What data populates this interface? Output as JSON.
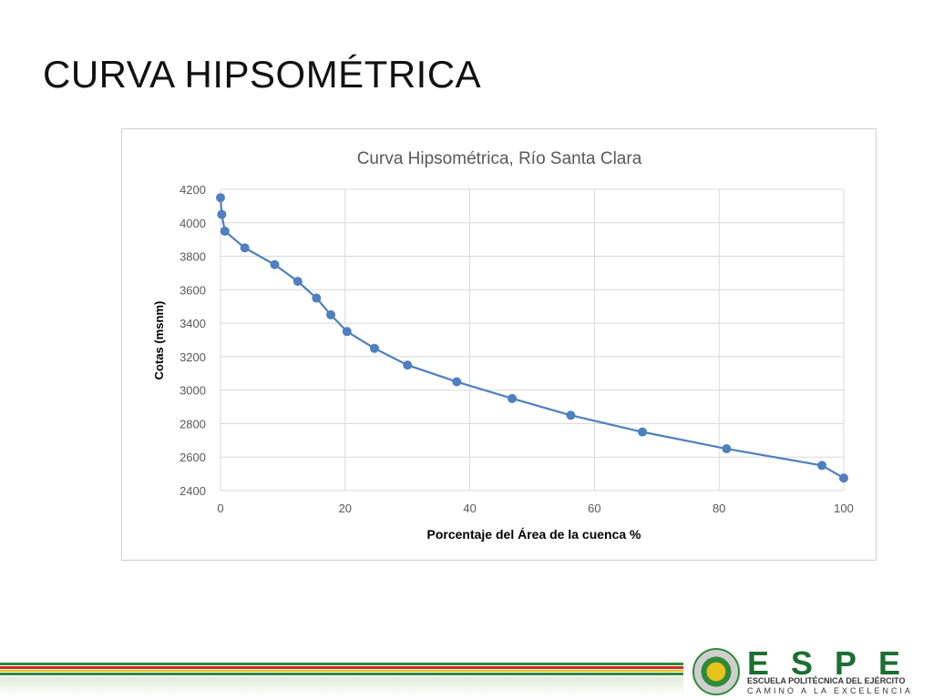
{
  "slide": {
    "title": "CURVA HIPSOMÉTRICA"
  },
  "footer": {
    "brand": "ESPE",
    "subtitle": "ESCUELA POLITÉCNICA DEL EJÉRCITO",
    "motto": "CAMINO A LA EXCELENCIA"
  },
  "colors": {
    "series": "#4e7fbf",
    "grid": "#d9d9d9",
    "axis_text": "#595959",
    "title_text": "#595959"
  },
  "chart_data": {
    "type": "line",
    "title": "Curva Hipsométrica, Río Santa Clara",
    "xlabel": "Porcentaje del Área de la cuenca %",
    "ylabel": "Cotas (msnm)",
    "xlim": [
      0,
      100
    ],
    "ylim": [
      2400,
      4200
    ],
    "xticks": [
      0,
      20,
      40,
      60,
      80,
      100
    ],
    "yticks": [
      2400,
      2600,
      2800,
      3000,
      3200,
      3400,
      3600,
      3800,
      4000,
      4200
    ],
    "grid": true,
    "markers": true,
    "series": [
      {
        "x": [
          0.0,
          0.2,
          0.7,
          3.9,
          8.7,
          12.4,
          15.4,
          17.7,
          20.3,
          24.7,
          30.0,
          37.9,
          46.8,
          56.2,
          67.7,
          81.2,
          96.5,
          100.0
        ],
        "y": [
          4150,
          4050,
          3950,
          3850,
          3750,
          3650,
          3550,
          3450,
          3350,
          3250,
          3150,
          3050,
          2950,
          2850,
          2750,
          2650,
          2550,
          2475
        ]
      }
    ]
  }
}
